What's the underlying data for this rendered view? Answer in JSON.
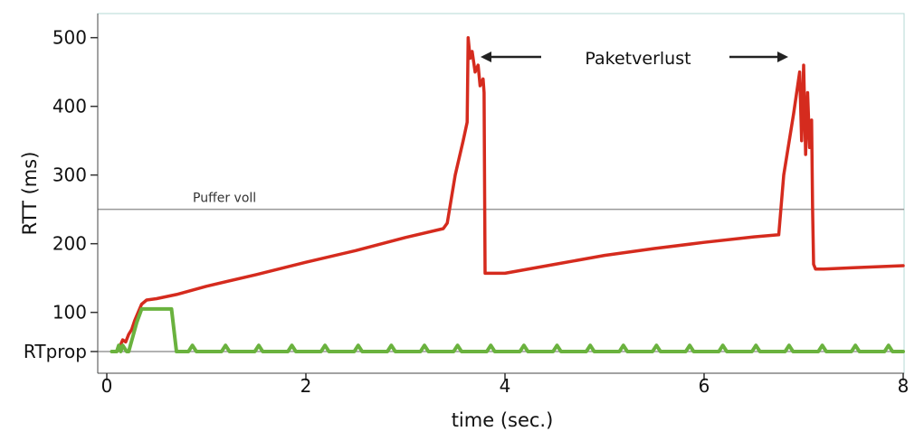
{
  "chart_data": {
    "type": "line",
    "title": "",
    "xlabel": "time (sec.)",
    "ylabel": "RTT (ms)",
    "xlim": [
      0,
      8
    ],
    "ylim": [
      0,
      500
    ],
    "x_ticks": [
      {
        "value": 0,
        "label": "0"
      },
      {
        "value": 2,
        "label": "2"
      },
      {
        "value": 4,
        "label": "4"
      },
      {
        "value": 6,
        "label": "6"
      },
      {
        "value": 8,
        "label": "8"
      }
    ],
    "y_ticks": [
      {
        "value": 43,
        "label": "RTprop"
      },
      {
        "value": 100,
        "label": "100"
      },
      {
        "value": 200,
        "label": "200"
      },
      {
        "value": 300,
        "label": "300"
      },
      {
        "value": 400,
        "label": "400"
      },
      {
        "value": 500,
        "label": "500"
      }
    ],
    "grid": false,
    "reference_lines": [
      {
        "label": "Puffer voll",
        "y": 250,
        "color": "#999999"
      },
      {
        "label": "",
        "y": 43,
        "color": "#999999"
      }
    ],
    "annotations": [
      {
        "text": "Paketverlust",
        "x": 5.0,
        "y": 475
      }
    ],
    "series": [
      {
        "color": "#d52b1e",
        "x": [
          0.1,
          0.13,
          0.16,
          0.19,
          0.22,
          0.25,
          0.28,
          0.3,
          0.35,
          0.4,
          0.5,
          0.7,
          1.0,
          1.5,
          2.0,
          2.5,
          3.0,
          3.38,
          3.42,
          3.5,
          3.58,
          3.62,
          3.63,
          3.65,
          3.67,
          3.7,
          3.73,
          3.75,
          3.78,
          3.79,
          3.8,
          3.84,
          4.0,
          4.5,
          5.0,
          5.5,
          6.0,
          6.5,
          6.75,
          6.8,
          6.9,
          6.96,
          6.98,
          7.0,
          7.02,
          7.04,
          7.06,
          7.08,
          7.09,
          7.1,
          7.12,
          7.2,
          7.5,
          8.0
        ],
        "y": [
          43,
          50,
          60,
          57,
          68,
          75,
          88,
          95,
          112,
          118,
          120,
          126,
          138,
          155,
          173,
          190,
          209,
          222,
          230,
          300,
          350,
          377,
          500,
          470,
          480,
          450,
          460,
          430,
          440,
          420,
          157,
          157,
          157,
          170,
          183,
          193,
          202,
          210,
          213,
          300,
          390,
          450,
          350,
          460,
          330,
          420,
          340,
          380,
          250,
          170,
          163,
          163,
          165,
          168
        ]
      },
      {
        "color": "#6ab23e",
        "x": [
          0.05,
          0.1,
          0.12,
          0.14,
          0.16,
          0.2,
          0.22,
          0.3,
          0.35,
          0.5,
          0.65,
          0.7,
          0.75,
          0.82,
          0.9,
          1.0,
          1.1,
          1.2,
          1.3,
          1.5,
          1.7,
          1.9,
          2.1,
          2.3,
          2.5,
          2.7,
          2.9,
          3.1,
          3.3,
          3.5,
          3.7,
          3.9,
          4.1,
          4.3,
          4.5,
          4.7,
          4.9,
          5.1,
          5.3,
          5.5,
          5.7,
          5.9,
          6.1,
          6.3,
          6.5,
          6.7,
          6.9,
          7.1,
          7.3,
          7.5,
          7.7,
          7.9,
          8.0
        ],
        "y": [
          43,
          43,
          52,
          43,
          52,
          43,
          43,
          85,
          105,
          105,
          105,
          43,
          43,
          43,
          43,
          43,
          43,
          43,
          43,
          43,
          43,
          43,
          43,
          43,
          43,
          43,
          43,
          43,
          43,
          43,
          43,
          43,
          43,
          43,
          43,
          43,
          43,
          43,
          43,
          43,
          43,
          43,
          43,
          43,
          43,
          43,
          43,
          43,
          43,
          43,
          43,
          43,
          43
        ],
        "periodic_blips": {
          "start": 0.82,
          "end": 7.95,
          "period": 0.333,
          "height": 52
        }
      }
    ]
  }
}
